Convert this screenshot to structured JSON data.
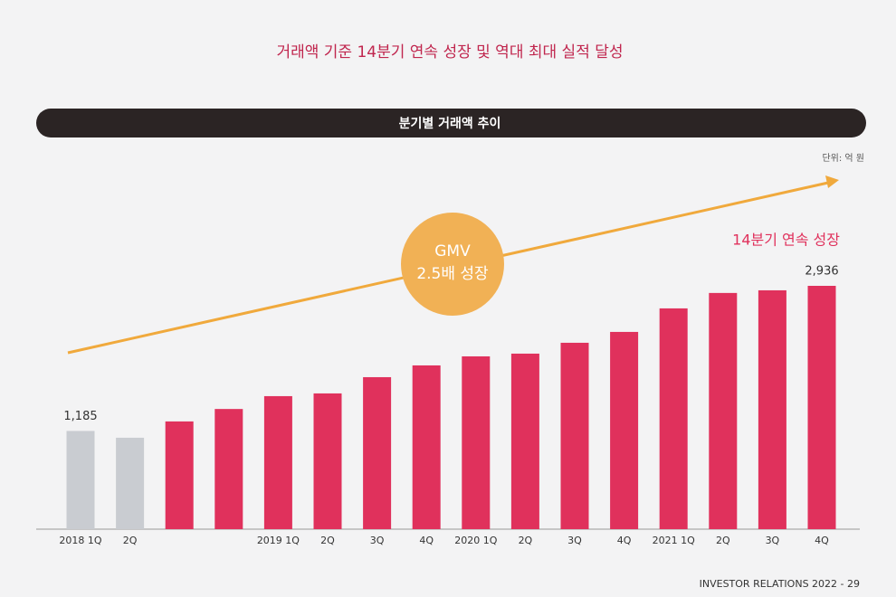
{
  "chart_data": {
    "type": "bar",
    "title": "거래액 기준 14분기 연속 성장 및 역대 최대 실적 달성",
    "subtitle": "분기별 거래액 추이",
    "unit_label": "단위: 억 원",
    "annotations": [
      "GMV",
      "2.5배 성장",
      "14분기 연속 성장"
    ],
    "footer": "INVESTOR RELATIONS 2022 - 29",
    "categories": [
      "2018 1Q",
      "2Q",
      null,
      null,
      "2019 1Q",
      "2Q",
      "3Q",
      "4Q",
      "2020 1Q",
      "2Q",
      "3Q",
      "4Q",
      "2021 1Q",
      "2Q",
      "3Q",
      "4Q"
    ],
    "values": [
      1185,
      1103,
      1300,
      1450,
      1605,
      1638,
      1834,
      1976,
      2085,
      2118,
      2249,
      2380,
      2664,
      2850,
      2882,
      2936
    ],
    "value_labels": [
      "1,185",
      null,
      null,
      null,
      null,
      null,
      null,
      null,
      null,
      null,
      null,
      null,
      null,
      null,
      null,
      "2,936"
    ],
    "colors": [
      "#c9ccd1",
      "#c9ccd1",
      "#e0315c",
      "#e0315c",
      "#e0315c",
      "#e0315c",
      "#e0315c",
      "#e0315c",
      "#e0315c",
      "#e0315c",
      "#e0315c",
      "#e0315c",
      "#e0315c",
      "#e0315c",
      "#e0315c",
      "#e0315c"
    ]
  }
}
